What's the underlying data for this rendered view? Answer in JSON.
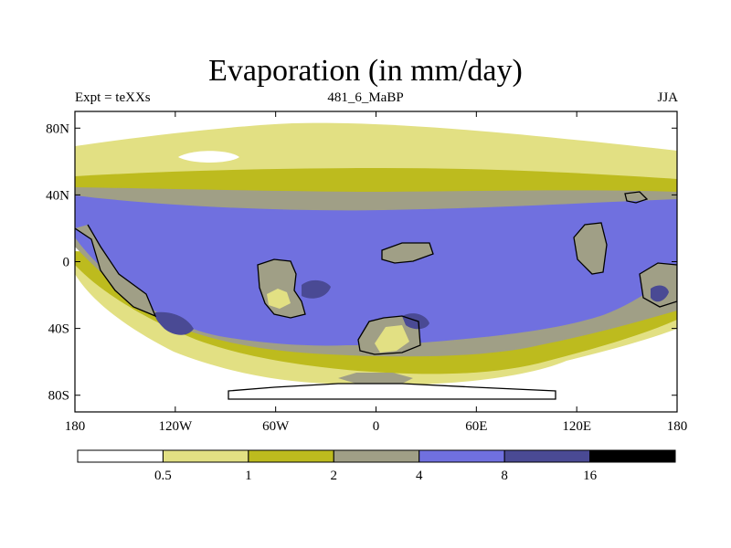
{
  "title": "Evaporation (in mm/day)",
  "experiment": "Expt = teXXs",
  "time_label": "481_6_MaBP",
  "season": "JJA",
  "colors": {
    "c0": "#ffffff",
    "c1": "#e2e083",
    "c2": "#bdbb1e",
    "c3": "#a09f86",
    "c4": "#7070df",
    "c5": "#4a4a94",
    "c6": "#000000"
  },
  "chart_data": {
    "type": "contour-map",
    "title": "Evaporation (in mm/day)",
    "x_range": [
      -180,
      180
    ],
    "y_range": [
      -90,
      90
    ],
    "x_ticks": [
      {
        "value": -180,
        "label": "180"
      },
      {
        "value": -120,
        "label": "120W"
      },
      {
        "value": -60,
        "label": "60W"
      },
      {
        "value": 0,
        "label": "0"
      },
      {
        "value": 60,
        "label": "60E"
      },
      {
        "value": 120,
        "label": "120E"
      },
      {
        "value": 180,
        "label": "180"
      }
    ],
    "y_ticks": [
      {
        "value": 80,
        "label": "80N"
      },
      {
        "value": 40,
        "label": "40N"
      },
      {
        "value": 0,
        "label": "0"
      },
      {
        "value": -40,
        "label": "40S"
      },
      {
        "value": -80,
        "label": "80S"
      }
    ],
    "levels": [
      0.5,
      1,
      2,
      4,
      8,
      16
    ],
    "level_labels": [
      "0.5",
      "1",
      "2",
      "4",
      "8",
      "16"
    ],
    "colorbar_colors": [
      "#ffffff",
      "#e2e083",
      "#bdbb1e",
      "#a09f86",
      "#7070df",
      "#4a4a94",
      "#000000"
    ]
  }
}
